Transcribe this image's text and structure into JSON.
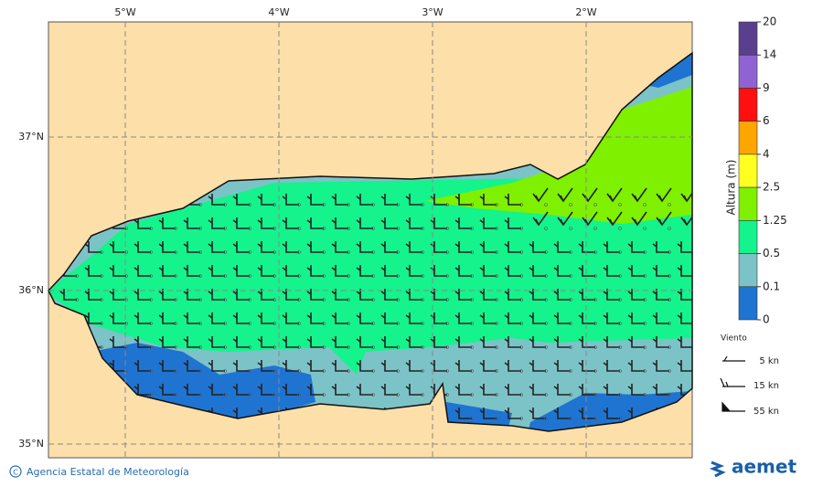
{
  "lon_labels": [
    "5°W",
    "4°W",
    "3°W",
    "2°W"
  ],
  "lat_labels": [
    "37°N",
    "36°N",
    "35°N"
  ],
  "colorbar": {
    "label": "Altura (m)",
    "levels": [
      20,
      14,
      9,
      6,
      4,
      2.5,
      1.25,
      0.5,
      0.1,
      0
    ],
    "colors": [
      "#5b3f8f",
      "#8f63d4",
      "#ff1010",
      "#ffa500",
      "#ffff20",
      "#7ff000",
      "#14f38c",
      "#7cc3c8",
      "#1f74d2"
    ]
  },
  "wind_legend": {
    "title": "Viento",
    "items": [
      "5 kn",
      "15 kn",
      "55 kn"
    ]
  },
  "credit": "Agencia Estatal de Meteorología",
  "logo": "aemet"
}
